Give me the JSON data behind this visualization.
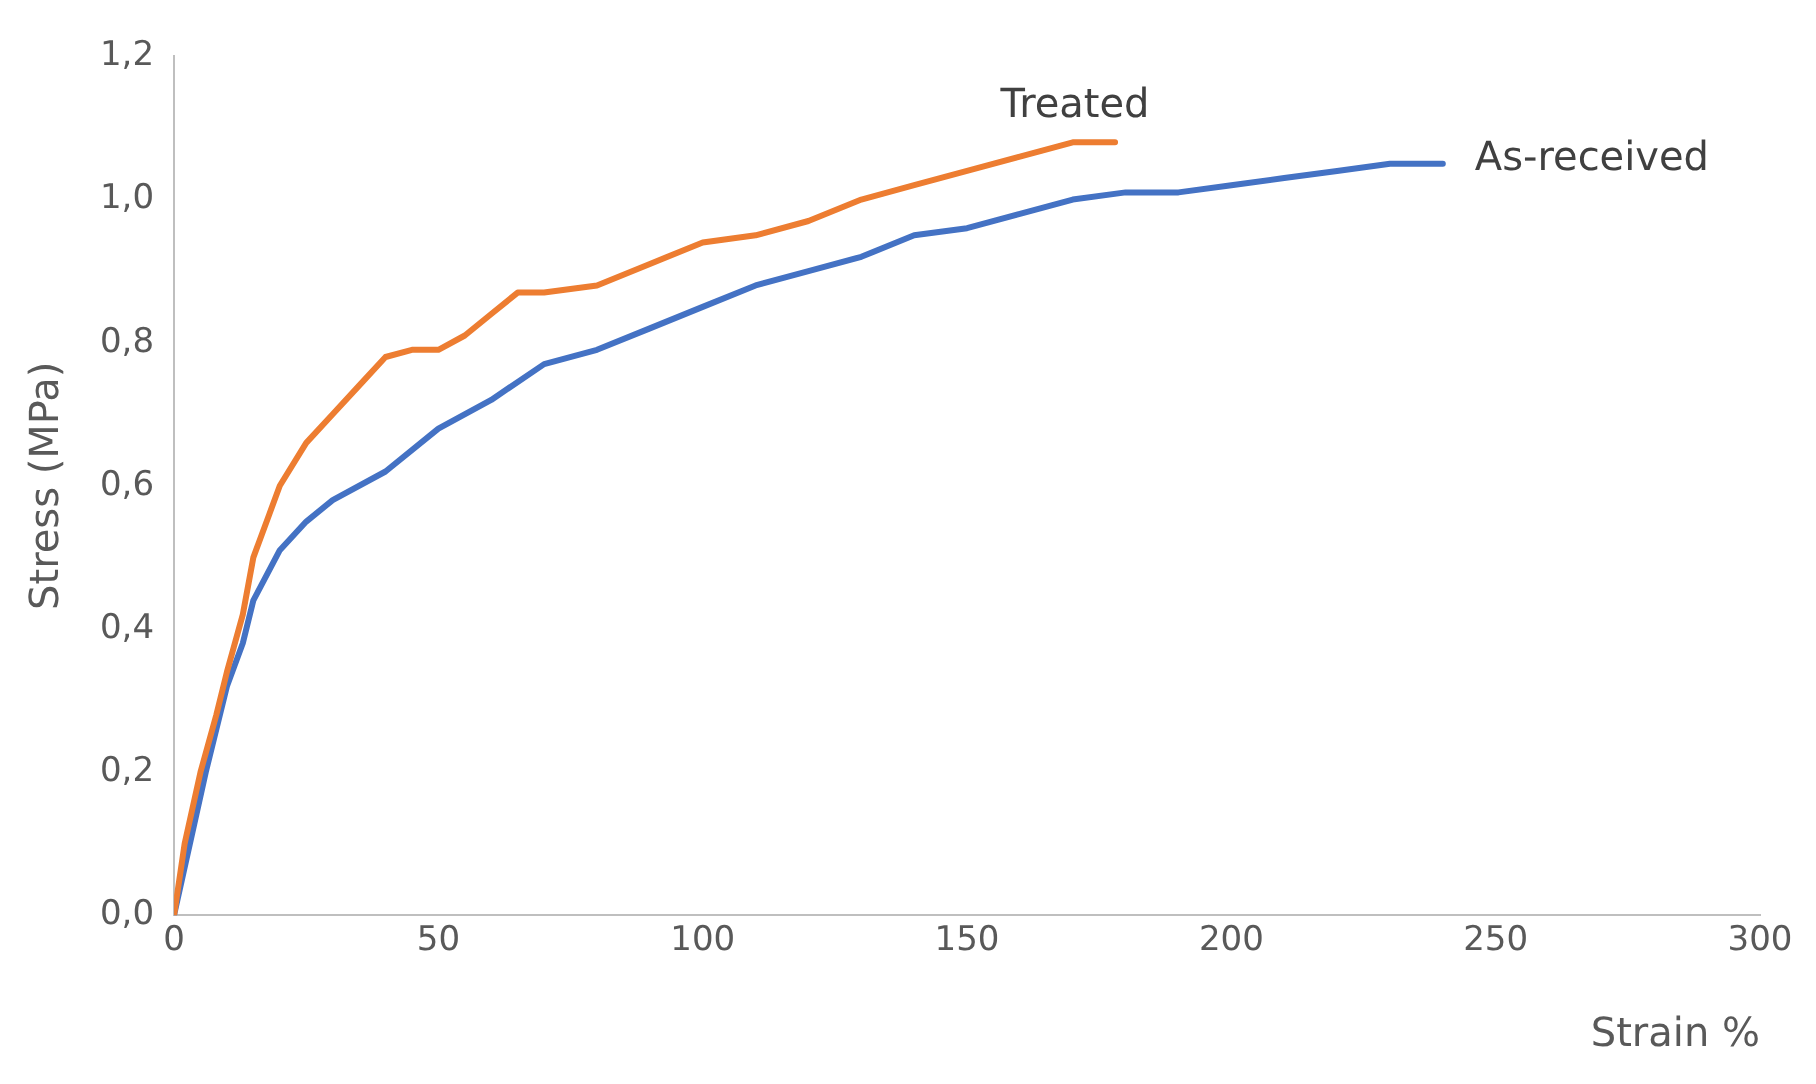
{
  "chart_data": {
    "type": "line",
    "xlabel": "Strain %",
    "ylabel": "Stress (MPa)",
    "xlim": [
      0,
      300
    ],
    "xticks": [
      0,
      50,
      100,
      150,
      200,
      250,
      300
    ],
    "ylim": [
      0,
      1.2
    ],
    "yticks": [
      {
        "value": 0,
        "label": "0,0"
      },
      {
        "value": 0.2,
        "label": "0,2"
      },
      {
        "value": 0.4,
        "label": "0,4"
      },
      {
        "value": 0.6,
        "label": "0,6"
      },
      {
        "value": 0.8,
        "label": "0,8"
      },
      {
        "value": 1,
        "label": "1,0"
      },
      {
        "value": 1.2,
        "label": "1,2"
      }
    ],
    "grid": false,
    "legend": false,
    "marker": "none",
    "line_style": "solid",
    "series": [
      {
        "name": "Treated",
        "color": "#ed7d31",
        "x": [
          0,
          2,
          5,
          8,
          10,
          13,
          15,
          18,
          20,
          25,
          30,
          35,
          40,
          45,
          50,
          55,
          60,
          65,
          70,
          80,
          90,
          100,
          110,
          120,
          130,
          140,
          150,
          160,
          170,
          178
        ],
        "values": [
          0,
          0.1,
          0.2,
          0.28,
          0.34,
          0.42,
          0.5,
          0.56,
          0.6,
          0.66,
          0.7,
          0.74,
          0.78,
          0.79,
          0.79,
          0.81,
          0.84,
          0.87,
          0.87,
          0.88,
          0.91,
          0.94,
          0.95,
          0.97,
          1.0,
          1.02,
          1.04,
          1.06,
          1.08,
          1.08
        ]
      },
      {
        "name": "As-received",
        "color": "#4472c4",
        "x": [
          0,
          3,
          6,
          10,
          13,
          15,
          20,
          25,
          30,
          40,
          50,
          60,
          70,
          80,
          90,
          100,
          110,
          120,
          130,
          140,
          150,
          160,
          170,
          180,
          190,
          200,
          210,
          220,
          230,
          240
        ],
        "values": [
          0,
          0.1,
          0.2,
          0.32,
          0.38,
          0.44,
          0.51,
          0.55,
          0.58,
          0.62,
          0.68,
          0.72,
          0.77,
          0.79,
          0.82,
          0.85,
          0.88,
          0.9,
          0.92,
          0.95,
          0.96,
          0.98,
          1.0,
          1.01,
          1.01,
          1.02,
          1.03,
          1.04,
          1.05,
          1.05
        ]
      }
    ]
  }
}
